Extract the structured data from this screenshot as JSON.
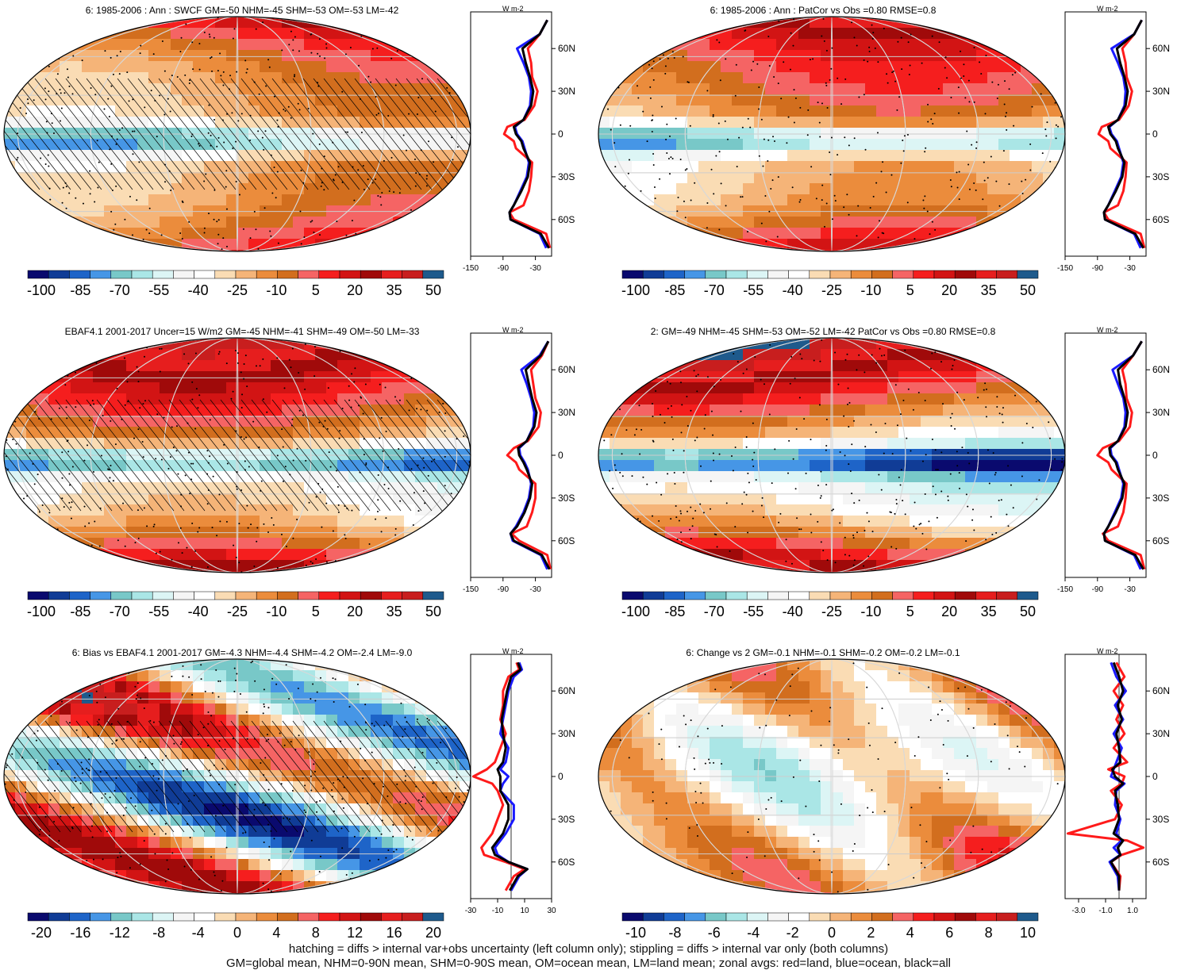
{
  "footnotes": [
    "hatching = diffs > internal var+obs uncertainty (left column only); stippling = diffs > internal var only (both columns)",
    "GM=global mean, NHM=0-90N mean, SHM=0-90S mean, OM=ocean mean, LM=land mean; zonal avgs: red=land, blue=ocean, black=all"
  ],
  "colors": {
    "land_line": "#ff1a1a",
    "ocean_line": "#1a1aff",
    "all_line": "#000000"
  },
  "chart_data": [
    {
      "type": "heatmap",
      "title": "6: 1985-2006 : Ann : SWCF GM=-50 NHM=-45 SHM=-53 OM=-53 LM=-42",
      "colorbar_ticks": [
        "-100",
        "-85",
        "-70",
        "-55",
        "-40",
        "-25",
        "-10",
        "5",
        "20",
        "35",
        "50"
      ],
      "colorbar_range": [
        -100,
        50
      ],
      "zonal_unit": "W m-2",
      "zonal_lat_ticks": [
        "60N",
        "30N",
        "0",
        "30S",
        "60S"
      ],
      "zonal_x_ticks": [
        "-150",
        "-90",
        "-30"
      ],
      "zonal_xlim": [
        -150,
        0
      ],
      "hatching": true,
      "stippling": true,
      "zonal_mean": {
        "lat": [
          80,
          70,
          60,
          50,
          40,
          30,
          20,
          10,
          5,
          0,
          -5,
          -10,
          -20,
          -30,
          -40,
          -50,
          -55,
          -60,
          -70,
          -80
        ],
        "land": [
          -8,
          -22,
          -44,
          -38,
          -36,
          -26,
          -32,
          -50,
          -82,
          -88,
          -70,
          -66,
          -36,
          -38,
          -42,
          -52,
          -78,
          -70,
          -10,
          -3
        ],
        "ocean": [
          -8,
          -22,
          -64,
          -52,
          -42,
          -38,
          -40,
          -52,
          -68,
          -64,
          -54,
          -50,
          -42,
          -46,
          -58,
          -70,
          -78,
          -76,
          -22,
          -10
        ],
        "all": [
          -8,
          -22,
          -54,
          -48,
          -40,
          -34,
          -38,
          -52,
          -70,
          -66,
          -56,
          -52,
          -40,
          -44,
          -56,
          -70,
          -78,
          -76,
          -20,
          -5
        ]
      }
    },
    {
      "type": "heatmap",
      "title": "6: 1985-2006 : Ann : PatCor vs Obs =0.80 RMSE=0.8",
      "colorbar_ticks": [
        "-100",
        "-85",
        "-70",
        "-55",
        "-40",
        "-25",
        "-10",
        "5",
        "20",
        "35",
        "50"
      ],
      "colorbar_range": [
        -100,
        50
      ],
      "zonal_unit": "W m-2",
      "zonal_lat_ticks": [
        "60N",
        "30N",
        "0",
        "30S",
        "60S"
      ],
      "zonal_x_ticks": [
        "-150",
        "-90",
        "-30"
      ],
      "zonal_xlim": [
        -150,
        0
      ],
      "hatching": false,
      "stippling": true,
      "zonal_mean": {
        "lat": [
          80,
          70,
          60,
          50,
          40,
          30,
          20,
          10,
          5,
          0,
          -5,
          -10,
          -20,
          -30,
          -40,
          -50,
          -55,
          -60,
          -70,
          -80
        ],
        "land": [
          -8,
          -22,
          -44,
          -38,
          -36,
          -26,
          -32,
          -50,
          -82,
          -88,
          -70,
          -66,
          -36,
          -38,
          -42,
          -52,
          -78,
          -70,
          -10,
          -3
        ],
        "ocean": [
          -8,
          -22,
          -64,
          -52,
          -42,
          -38,
          -40,
          -52,
          -68,
          -64,
          -54,
          -50,
          -42,
          -46,
          -58,
          -70,
          -78,
          -76,
          -22,
          -10
        ],
        "all": [
          -8,
          -22,
          -54,
          -48,
          -40,
          -34,
          -38,
          -52,
          -70,
          -66,
          -56,
          -52,
          -40,
          -44,
          -56,
          -70,
          -78,
          -76,
          -20,
          -5
        ]
      }
    },
    {
      "type": "heatmap",
      "title": "EBAF4.1 2001-2017 Uncer=15 W/m2 GM=-45 NHM=-41 SHM=-49 OM=-50 LM=-33",
      "colorbar_ticks": [
        "-100",
        "-85",
        "-70",
        "-55",
        "-40",
        "-25",
        "-10",
        "5",
        "20",
        "35",
        "50"
      ],
      "colorbar_range": [
        -100,
        50
      ],
      "zonal_unit": "W m-2",
      "zonal_lat_ticks": [
        "60N",
        "30N",
        "0",
        "30S",
        "60S"
      ],
      "zonal_x_ticks": [
        "-150",
        "-90",
        "-30"
      ],
      "zonal_xlim": [
        -150,
        0
      ],
      "hatching": true,
      "stippling": true,
      "zonal_mean": {
        "lat": [
          80,
          70,
          60,
          50,
          40,
          30,
          20,
          10,
          5,
          0,
          -5,
          -10,
          -20,
          -30,
          -40,
          -50,
          -55,
          -60,
          -70,
          -80
        ],
        "land": [
          -6,
          -18,
          -38,
          -34,
          -30,
          -20,
          -24,
          -44,
          -70,
          -82,
          -66,
          -60,
          -30,
          -30,
          -36,
          -46,
          -74,
          -60,
          -8,
          -2
        ],
        "ocean": [
          -6,
          -22,
          -56,
          -46,
          -38,
          -32,
          -34,
          -46,
          -60,
          -58,
          -50,
          -44,
          -38,
          -42,
          -52,
          -66,
          -76,
          -72,
          -20,
          -8
        ],
        "all": [
          -6,
          -20,
          -48,
          -42,
          -36,
          -28,
          -32,
          -46,
          -62,
          -60,
          -52,
          -46,
          -36,
          -40,
          -50,
          -64,
          -76,
          -70,
          -18,
          -4
        ]
      }
    },
    {
      "type": "heatmap",
      "title": "2: GM=-49 NHM=-45 SHM=-53 OM=-52 LM=-42 PatCor vs Obs =0.80 RMSE=0.8",
      "colorbar_ticks": [
        "-100",
        "-85",
        "-70",
        "-55",
        "-40",
        "-25",
        "-10",
        "5",
        "20",
        "35",
        "50"
      ],
      "colorbar_range": [
        -100,
        50
      ],
      "zonal_unit": "W m-2",
      "zonal_lat_ticks": [
        "60N",
        "30N",
        "0",
        "30S",
        "60S"
      ],
      "zonal_x_ticks": [
        "-150",
        "-90",
        "-30"
      ],
      "zonal_xlim": [
        -150,
        0
      ],
      "hatching": false,
      "stippling": true,
      "zonal_mean": {
        "lat": [
          80,
          70,
          60,
          50,
          40,
          30,
          20,
          10,
          5,
          0,
          -5,
          -10,
          -20,
          -30,
          -40,
          -50,
          -55,
          -60,
          -70,
          -80
        ],
        "land": [
          -8,
          -24,
          -44,
          -38,
          -36,
          -26,
          -30,
          -50,
          -80,
          -90,
          -70,
          -64,
          -36,
          -38,
          -42,
          -52,
          -80,
          -70,
          -10,
          -3
        ],
        "ocean": [
          -8,
          -24,
          -62,
          -52,
          -42,
          -38,
          -40,
          -52,
          -66,
          -64,
          -54,
          -50,
          -42,
          -46,
          -58,
          -70,
          -78,
          -76,
          -22,
          -10
        ],
        "all": [
          -8,
          -24,
          -52,
          -48,
          -40,
          -34,
          -38,
          -52,
          -68,
          -66,
          -56,
          -52,
          -40,
          -44,
          -56,
          -70,
          -78,
          -76,
          -20,
          -5
        ]
      }
    },
    {
      "type": "heatmap",
      "title": "6: Bias vs EBAF4.1 2001-2017 GM=-4.3 NHM=-4.4 SHM=-4.2 OM=-2.4 LM=-9.0",
      "colorbar_ticks": [
        "-20",
        "-16",
        "-12",
        "-8",
        "-4",
        "0",
        "4",
        "8",
        "12",
        "16",
        "20"
      ],
      "colorbar_range": [
        -20,
        20
      ],
      "zonal_unit": "W m-2",
      "zonal_lat_ticks": [
        "60N",
        "30N",
        "0",
        "30S",
        "60S"
      ],
      "zonal_x_ticks": [
        "-30",
        "-10",
        "10",
        "30"
      ],
      "zonal_xlim": [
        -30,
        30
      ],
      "hatching": true,
      "stippling": true,
      "zonal_mean": {
        "lat": [
          80,
          75,
          70,
          60,
          50,
          40,
          30,
          20,
          10,
          5,
          0,
          -5,
          -10,
          -20,
          -30,
          -40,
          -50,
          -55,
          -60,
          -65,
          -70,
          -80
        ],
        "land": [
          4,
          6,
          -2,
          -6,
          -6,
          -8,
          -4,
          -8,
          -12,
          -18,
          -28,
          -14,
          -10,
          -6,
          -10,
          -14,
          -22,
          -20,
          -4,
          10,
          2,
          -4
        ],
        "ocean": [
          6,
          8,
          2,
          -2,
          -4,
          -6,
          -8,
          -2,
          -4,
          -8,
          -2,
          -6,
          -8,
          2,
          2,
          -4,
          -12,
          -10,
          -2,
          12,
          6,
          0
        ],
        "all": [
          5,
          7,
          0,
          -3,
          -5,
          -7,
          -6,
          -4,
          -6,
          -10,
          -8,
          -8,
          -8,
          -2,
          -2,
          -6,
          -14,
          -12,
          -2,
          12,
          5,
          -1
        ]
      }
    },
    {
      "type": "heatmap",
      "title": "6: Change vs 2 GM=-0.1 NHM=-0.1 SHM=-0.2 OM=-0.2 LM=-0.1",
      "colorbar_ticks": [
        "-10",
        "-8",
        "-6",
        "-4",
        "-2",
        "0",
        "2",
        "4",
        "6",
        "8",
        "10"
      ],
      "colorbar_range": [
        -10,
        10
      ],
      "zonal_unit": "W m-2",
      "zonal_lat_ticks": [
        "60N",
        "30N",
        "0",
        "30S",
        "60S"
      ],
      "zonal_x_ticks": [
        "-3.0",
        "-1.0",
        "1.0"
      ],
      "zonal_xlim": [
        -4,
        2
      ],
      "hatching": false,
      "stippling": true,
      "zonal_mean": {
        "lat": [
          80,
          70,
          60,
          50,
          40,
          30,
          20,
          10,
          5,
          0,
          -5,
          -10,
          -20,
          -30,
          -40,
          -45,
          -50,
          -55,
          -60,
          -70,
          -80
        ],
        "land": [
          -0.2,
          0.4,
          -0.4,
          0.3,
          -0.2,
          0.4,
          -0.4,
          0.6,
          -0.8,
          0.4,
          0.2,
          -0.6,
          0.2,
          -0.3,
          -3.8,
          0.6,
          1.8,
          0.2,
          -0.6,
          0.1,
          0.0
        ],
        "ocean": [
          -0.6,
          -0.2,
          0.5,
          -0.3,
          0.3,
          -0.4,
          0.2,
          -0.2,
          -0.4,
          -0.6,
          0.4,
          -0.2,
          -0.3,
          0.1,
          -0.2,
          0.2,
          -0.4,
          0.1,
          -0.7,
          -0.1,
          0.0
        ],
        "all": [
          -0.4,
          0.0,
          0.3,
          -0.1,
          0.2,
          -0.2,
          0.0,
          0.1,
          -0.5,
          -0.3,
          0.3,
          -0.3,
          -0.1,
          0.0,
          -0.4,
          0.3,
          -0.1,
          0.1,
          -0.6,
          0.0,
          0.0
        ]
      }
    }
  ]
}
